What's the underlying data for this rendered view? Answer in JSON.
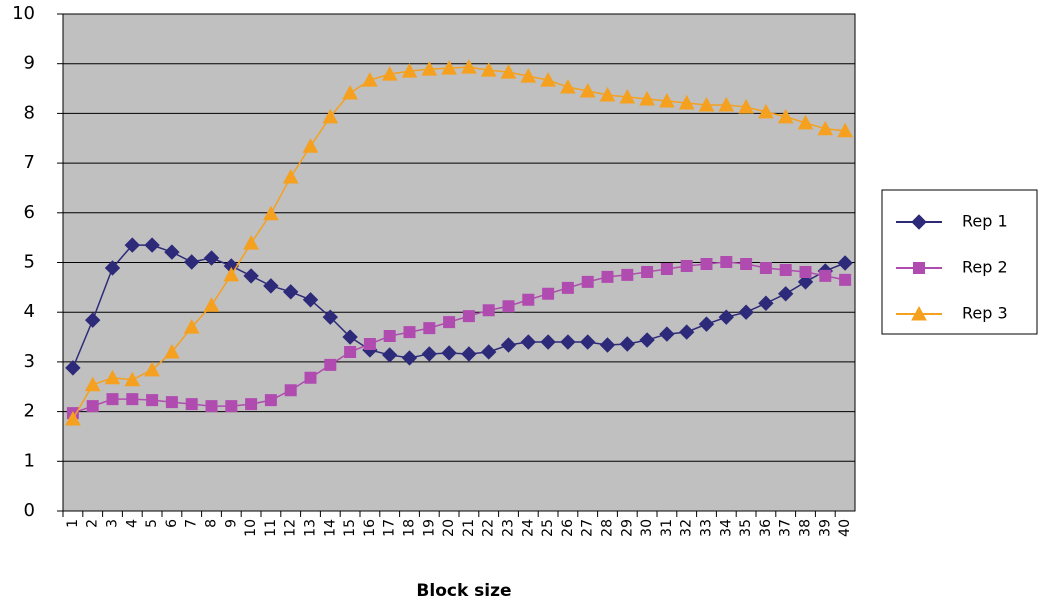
{
  "chart_data": {
    "type": "line",
    "x_label": "Block size",
    "categories": [
      "1",
      "2",
      "3",
      "4",
      "5",
      "6",
      "7",
      "8",
      "9",
      "10",
      "11",
      "12",
      "13",
      "14",
      "15",
      "16",
      "17",
      "18",
      "19",
      "20",
      "21",
      "22",
      "23",
      "24",
      "25",
      "26",
      "27",
      "28",
      "29",
      "30",
      "31",
      "32",
      "33",
      "34",
      "35",
      "36",
      "37",
      "38",
      "39",
      "40"
    ],
    "series": [
      {
        "name": "Rep 1",
        "color": "#2e2a7a",
        "marker": "diamond",
        "values": [
          2.88,
          3.84,
          4.89,
          5.35,
          5.35,
          5.21,
          5.01,
          5.09,
          4.93,
          4.73,
          4.53,
          4.41,
          4.25,
          3.9,
          3.5,
          3.24,
          3.14,
          3.08,
          3.16,
          3.18,
          3.16,
          3.2,
          3.34,
          3.4,
          3.4,
          3.4,
          3.4,
          3.34,
          3.36,
          3.44,
          3.56,
          3.6,
          3.76,
          3.9,
          4.0,
          4.18,
          4.37,
          4.61,
          4.83,
          4.99
        ]
      },
      {
        "name": "Rep 2",
        "color": "#b04cb0",
        "marker": "square",
        "values": [
          1.97,
          2.11,
          2.25,
          2.25,
          2.23,
          2.19,
          2.15,
          2.11,
          2.11,
          2.15,
          2.23,
          2.43,
          2.68,
          2.94,
          3.2,
          3.36,
          3.52,
          3.6,
          3.68,
          3.8,
          3.92,
          4.04,
          4.12,
          4.25,
          4.37,
          4.49,
          4.61,
          4.71,
          4.75,
          4.81,
          4.87,
          4.93,
          4.97,
          5.01,
          4.97,
          4.89,
          4.85,
          4.81,
          4.73,
          4.65
        ]
      },
      {
        "name": "Rep 3",
        "color": "#f5a01e",
        "marker": "triangle",
        "values": [
          1.85,
          2.54,
          2.68,
          2.64,
          2.84,
          3.2,
          3.7,
          4.14,
          4.75,
          5.39,
          5.98,
          6.72,
          7.34,
          7.93,
          8.41,
          8.67,
          8.79,
          8.85,
          8.89,
          8.91,
          8.93,
          8.87,
          8.83,
          8.75,
          8.67,
          8.53,
          8.45,
          8.37,
          8.33,
          8.29,
          8.25,
          8.21,
          8.17,
          8.17,
          8.13,
          8.03,
          7.93,
          7.81,
          7.69,
          7.65
        ]
      }
    ],
    "ylim": [
      0,
      10
    ],
    "yticks": [
      0,
      1,
      2,
      3,
      4,
      5,
      6,
      7,
      8,
      9,
      10
    ],
    "grid": true,
    "legend": "right"
  }
}
